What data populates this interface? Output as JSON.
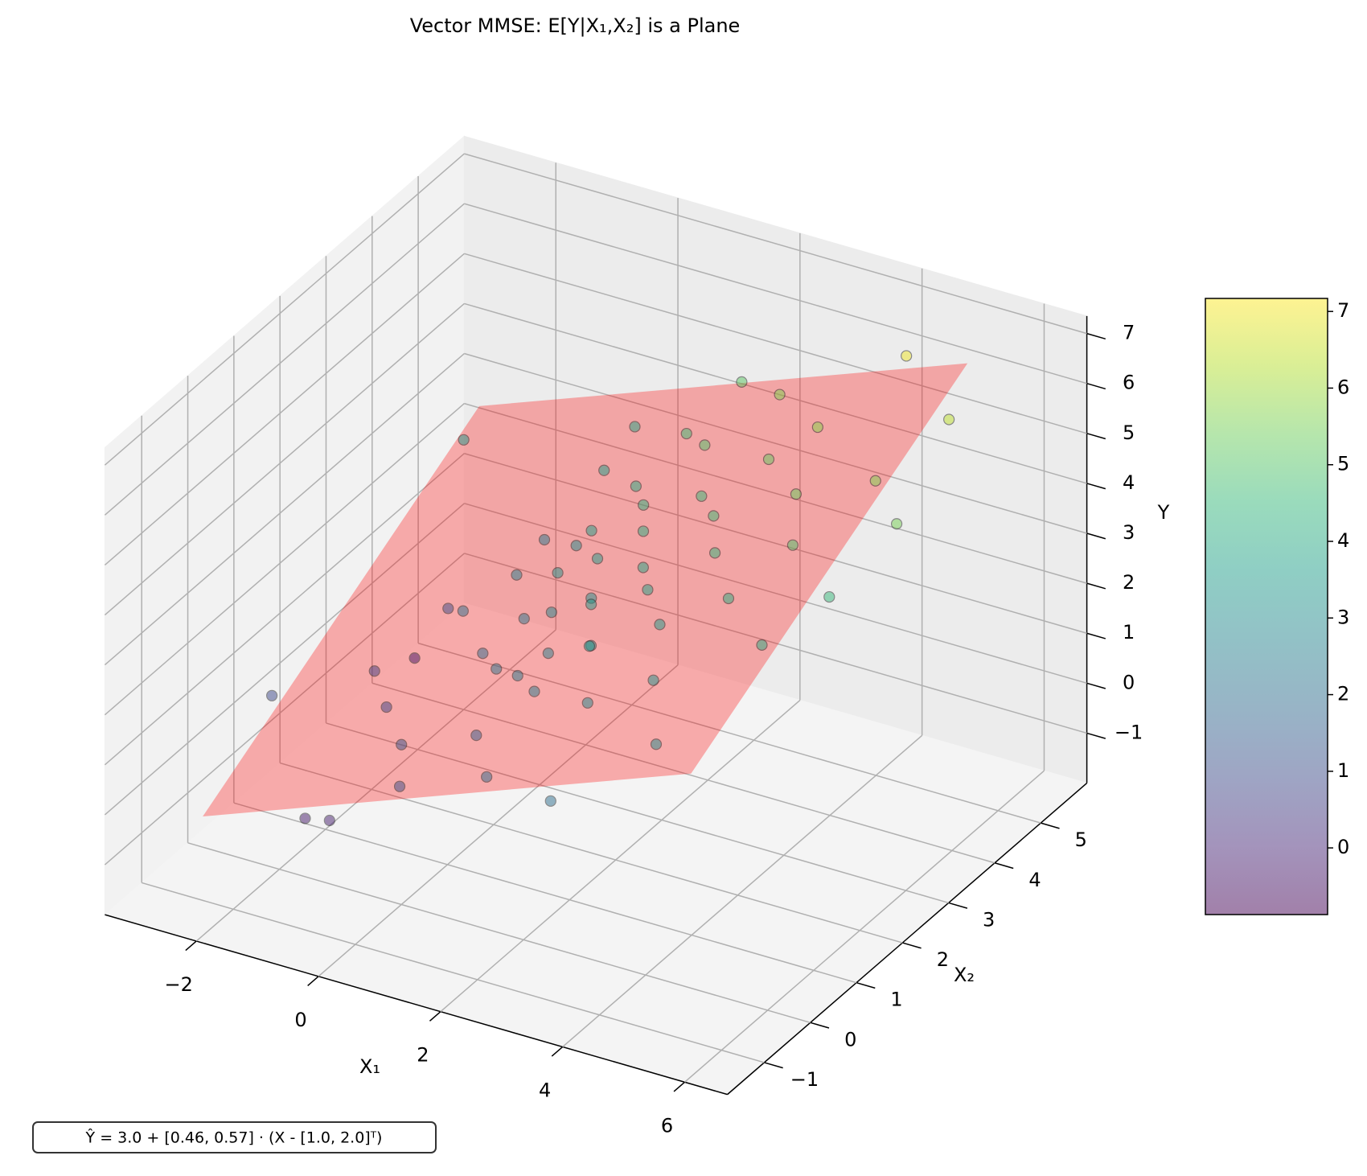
{
  "chart_data": {
    "type": "scatter3d",
    "title": "Vector MMSE: E[Y|X₁,X₂] is a Plane",
    "x_label": "X₁",
    "y_label": "X₂",
    "z_label": "Y",
    "annotation": "Ŷ = 3.0 + [0.46, 0.57] · (X - [1.0, 2.0]ᵀ)",
    "xlim": [
      -3.5,
      6.7
    ],
    "xticks": [
      {
        "value": -2,
        "label": "−2"
      },
      0,
      2,
      4,
      6
    ],
    "ylim": [
      -1.8,
      6.0
    ],
    "yticks": [
      {
        "value": -1,
        "label": "−1"
      },
      0,
      1,
      2,
      3,
      4,
      5
    ],
    "zlim": [
      -2.0,
      7.35
    ],
    "zticks": [
      {
        "value": -1,
        "label": "−1"
      },
      0,
      1,
      2,
      3,
      4,
      5,
      6,
      7
    ],
    "grid": true,
    "colormap": "viridis",
    "point_opacity": 0.5,
    "clim": [
      -0.87,
      7.17
    ],
    "cticks": [
      0,
      1,
      2,
      3,
      4,
      5,
      6,
      7
    ],
    "plane": {
      "color": "#ff0000",
      "opacity": 0.3,
      "x1": [
        -2.5,
        5.5,
        5.5,
        -2.5
      ],
      "x2": [
        -1,
        -1,
        5,
        5
      ],
      "y": [
        -0.32,
        3.36,
        6.78,
        3.1
      ]
    },
    "points": {
      "x1": [
        -2.5,
        -2.0,
        -1.5,
        -1.0,
        -0.8,
        -0.5,
        -0.3,
        0,
        0,
        0.2,
        0.3,
        0.5,
        0.5,
        0.6,
        0.8,
        0.9,
        1.0,
        1.0,
        1.1,
        1.2,
        1.3,
        1.4,
        1.5,
        1.5,
        1.6,
        1.7,
        1.8,
        1.9,
        2.0,
        2.0,
        2.1,
        2.2,
        2.3,
        2.4,
        2.5,
        2.6,
        2.8,
        2.9,
        3.0,
        3.1,
        3.3,
        3.4,
        3.6,
        3.8,
        4.0,
        4.2,
        4.4,
        4.6,
        4.8,
        5.0,
        5.2,
        5.5,
        5.8,
        6.0,
        -2.2,
        -1.2,
        0.2,
        3.2,
        1.8,
        -1.8
      ],
      "x2": [
        0.5,
        4.0,
        3.0,
        1.0,
        -0.5,
        2.0,
        3.5,
        0,
        2.5,
        1.5,
        4.0,
        -0.7,
        2.0,
        3.0,
        1.0,
        2.2,
        0.3,
        2.8,
        1.8,
        3.5,
        0.8,
        2.4,
        1.2,
        4.2,
        2.0,
        3.0,
        0.5,
        1.6,
        2.6,
        -0.8,
        3.8,
        1.2,
        2.2,
        0.9,
        3.2,
        1.9,
        4.5,
        0.2,
        2.8,
        1.5,
        3.6,
        2.3,
        0.7,
        4.0,
        1.8,
        3.0,
        -0.3,
        2.4,
        4.6,
        1.2,
        3.4,
        2.0,
        4.2,
        2.8,
        3.2,
        -0.5,
        4.8,
        -1.0,
        5.0,
        1.8
      ],
      "y": [
        0.9,
        3.4,
        1.0,
        0.8,
        -0.2,
        2.1,
        2.4,
        1.2,
        2.6,
        1.9,
        3.6,
        1.1,
        2.3,
        3.0,
        2.2,
        3.2,
        1.5,
        3.6,
        2.8,
        4.0,
        2.4,
        3.5,
        2.6,
        4.6,
        3.1,
        4.2,
        2.5,
        3.4,
        4.1,
        1.9,
        4.9,
        3.0,
        3.8,
        3.3,
        4.5,
        3.7,
        5.6,
        2.9,
        4.6,
        3.5,
        5.2,
        4.4,
        3.2,
        5.7,
        4.1,
        5.3,
        3.0,
        4.9,
        7.0,
        4.0,
        5.6,
        4.5,
        6.4,
        5.5,
        -0.4,
        -0.3,
        3.8,
        2.0,
        5.1,
        0.6
      ]
    }
  }
}
